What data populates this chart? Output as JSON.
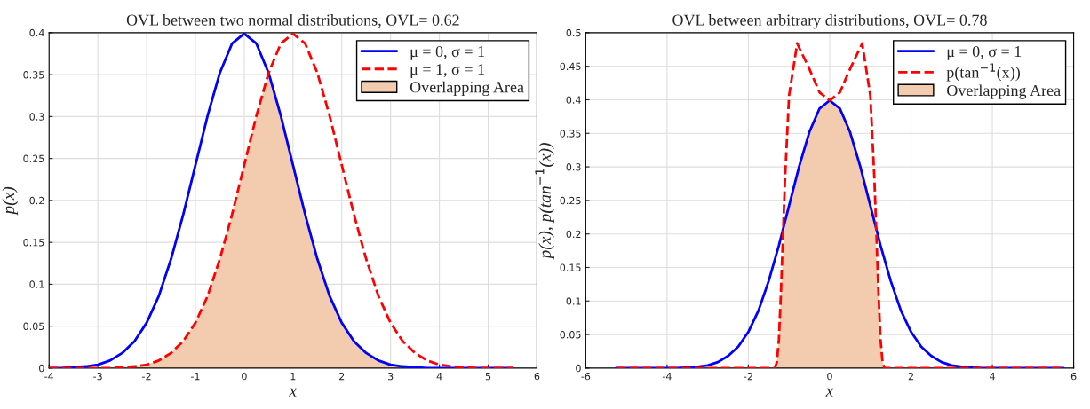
{
  "chart_data": [
    {
      "type": "line",
      "title": "OVL between two normal distributions, OVL= 0.62",
      "xlabel": "x",
      "ylabel": "p(x)",
      "xlim": [
        -4,
        6
      ],
      "xticks": [
        -4,
        -3,
        -2,
        -1,
        0,
        1,
        2,
        3,
        4,
        5,
        6
      ],
      "ylim": [
        0,
        0.4
      ],
      "yticks": [
        0,
        0.05,
        0.1,
        0.15,
        0.2,
        0.25,
        0.3,
        0.35,
        0.4
      ],
      "grid": true,
      "legend": "top right",
      "x": [
        -4,
        -3.75,
        -3.5,
        -3.25,
        -3,
        -2.75,
        -2.5,
        -2.25,
        -2,
        -1.75,
        -1.5,
        -1.25,
        -1,
        -0.75,
        -0.5,
        -0.25,
        0,
        0.25,
        0.5,
        0.75,
        1,
        1.25,
        1.5,
        1.75,
        2,
        2.25,
        2.5,
        2.75,
        3,
        3.25,
        3.5,
        3.75,
        4,
        4.25,
        4.5,
        4.75,
        5,
        5.25,
        5.5
      ],
      "series": [
        {
          "name": "μ = 0, σ = 1",
          "color": "#0000ff",
          "line_style": "solid",
          "values": [
            0,
            0,
            0.001,
            0.002,
            0.004,
            0.009,
            0.018,
            0.032,
            0.054,
            0.086,
            0.13,
            0.183,
            0.242,
            0.301,
            0.352,
            0.387,
            0.399,
            0.387,
            0.352,
            0.301,
            0.242,
            0.183,
            0.13,
            0.086,
            0.054,
            0.032,
            0.018,
            0.009,
            0.004,
            0.002,
            0.001,
            0,
            0,
            0,
            0,
            0,
            0,
            0,
            0
          ]
        },
        {
          "name": "μ = 1, σ = 1",
          "color": "#ff0000",
          "line_style": "dashed",
          "values": [
            0,
            0,
            0,
            0,
            0,
            0,
            0.001,
            0.002,
            0.004,
            0.009,
            0.018,
            0.032,
            0.054,
            0.086,
            0.13,
            0.183,
            0.242,
            0.301,
            0.352,
            0.387,
            0.399,
            0.387,
            0.352,
            0.301,
            0.242,
            0.183,
            0.13,
            0.086,
            0.054,
            0.032,
            0.018,
            0.009,
            0.004,
            0.002,
            0.001,
            0,
            0,
            0,
            0
          ]
        },
        {
          "type": "area",
          "name": "Overlapping Area",
          "color": "#f3ccb0",
          "values": [
            0,
            0,
            0,
            0,
            0,
            0,
            0.001,
            0.002,
            0.004,
            0.009,
            0.018,
            0.032,
            0.054,
            0.086,
            0.13,
            0.183,
            0.242,
            0.301,
            0.352,
            0.301,
            0.242,
            0.183,
            0.13,
            0.086,
            0.054,
            0.032,
            0.018,
            0.009,
            0.004,
            0.002,
            0.001,
            0,
            0,
            0,
            0,
            0,
            0,
            0,
            0
          ]
        }
      ]
    },
    {
      "type": "line",
      "title": "OVL between arbitrary distributions, OVL= 0.78",
      "xlabel": "x",
      "ylabel": "p(x), p(tan$^{−1}$(x))",
      "xlim": [
        -6,
        6
      ],
      "xticks": [
        -6,
        -4,
        -2,
        0,
        2,
        4,
        6
      ],
      "ylim": [
        0,
        0.5
      ],
      "yticks": [
        0,
        0.05,
        0.1,
        0.15,
        0.2,
        0.25,
        0.3,
        0.35,
        0.4,
        0.45,
        0.5
      ],
      "grid": true,
      "legend": "top right",
      "series": [
        {
          "name": "μ = 0, σ = 1",
          "color": "#0000ff",
          "line_style": "solid",
          "x": [
            -5.25,
            -5,
            -4.75,
            -4.5,
            -4.25,
            -4,
            -3.75,
            -3.5,
            -3.25,
            -3,
            -2.75,
            -2.5,
            -2.25,
            -2,
            -1.75,
            -1.5,
            -1.25,
            -1,
            -0.75,
            -0.5,
            -0.25,
            0,
            0.25,
            0.5,
            0.75,
            1,
            1.25,
            1.5,
            1.75,
            2,
            2.25,
            2.5,
            2.75,
            3,
            3.25,
            3.5,
            3.75,
            4,
            4.25,
            4.5,
            4.75,
            5,
            5.25,
            5.5,
            5.75
          ],
          "values": [
            0,
            0,
            0,
            0,
            0,
            0,
            0,
            0.001,
            0.002,
            0.004,
            0.009,
            0.018,
            0.032,
            0.054,
            0.086,
            0.13,
            0.183,
            0.242,
            0.301,
            0.352,
            0.387,
            0.399,
            0.387,
            0.352,
            0.301,
            0.242,
            0.183,
            0.13,
            0.086,
            0.054,
            0.032,
            0.018,
            0.009,
            0.004,
            0.002,
            0.001,
            0,
            0,
            0,
            0,
            0,
            0,
            0,
            0,
            0
          ]
        },
        {
          "name": "p(tan$^{−1}$(x))",
          "color": "#ff0000",
          "line_style": "dashed",
          "x": [
            -5.25,
            -4,
            -3,
            -2,
            -1.5,
            -1.35,
            -1.3,
            -1.25,
            -1.2,
            -1.1,
            -1,
            -0.8,
            -0.5,
            -0.25,
            0,
            0.25,
            0.5,
            0.8,
            1,
            1.1,
            1.2,
            1.25,
            1.3,
            1.35,
            1.5,
            2,
            3,
            4,
            5.75
          ],
          "values": [
            0,
            0,
            0,
            0,
            0,
            0,
            0.009,
            0.043,
            0.112,
            0.281,
            0.406,
            0.484,
            0.446,
            0.411,
            0.399,
            0.411,
            0.446,
            0.484,
            0.406,
            0.281,
            0.112,
            0.043,
            0.009,
            0,
            0,
            0,
            0,
            0,
            0
          ]
        },
        {
          "type": "area",
          "name": "Overlapping Area",
          "color": "#f3ccb0",
          "x": [
            -1.5,
            -1.35,
            -1.3,
            -1.25,
            -1.2,
            -1.1,
            -1,
            -0.8,
            -0.5,
            -0.25,
            0,
            0.25,
            0.5,
            0.8,
            1,
            1.1,
            1.2,
            1.25,
            1.3,
            1.35,
            1.5
          ],
          "values": [
            0,
            0,
            0.009,
            0.043,
            0.112,
            0.218,
            0.242,
            0.29,
            0.352,
            0.387,
            0.399,
            0.387,
            0.352,
            0.29,
            0.242,
            0.218,
            0.112,
            0.043,
            0.009,
            0,
            0
          ]
        }
      ]
    }
  ]
}
